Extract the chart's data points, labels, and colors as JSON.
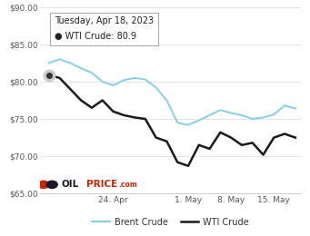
{
  "brent_values": [
    82.5,
    83.0,
    82.5,
    81.8,
    81.2,
    80.0,
    79.5,
    80.2,
    80.5,
    80.3,
    79.2,
    77.5,
    74.5,
    74.2,
    74.8,
    75.5,
    76.2,
    75.8,
    75.5,
    75.0,
    75.2,
    75.6,
    76.8,
    76.4
  ],
  "wti_values": [
    80.9,
    80.5,
    79.0,
    77.5,
    76.5,
    77.5,
    76.0,
    75.5,
    75.2,
    75.0,
    72.5,
    72.0,
    69.2,
    68.7,
    71.5,
    71.0,
    73.2,
    72.5,
    71.5,
    71.8,
    70.2,
    72.5,
    73.0,
    72.5
  ],
  "brent_color": "#87ceeb",
  "wti_color": "#1a1a1a",
  "tooltip_date": "Tuesday, Apr 18, 2023",
  "tooltip_label": "WTI Crude: 80.9",
  "tooltip_wti_y": 80.9,
  "ylim": [
    65.0,
    90.0
  ],
  "yticks": [
    65.0,
    70.0,
    75.0,
    80.0,
    85.0,
    90.0
  ],
  "ytick_labels": [
    "$65.00",
    "$70.00",
    "$75.00",
    "$80.00",
    "$85.00",
    "$90.00"
  ],
  "xtick_labels": [
    "24. Apr",
    "1. May",
    "8. May",
    "15. May"
  ],
  "xtick_positions": [
    6,
    13,
    17,
    21
  ],
  "legend_brent": "Brent Crude",
  "legend_wti": "WTI Crude",
  "bg_color": "#ffffff",
  "grid_color": "#e0e0e0",
  "n_points": 24
}
